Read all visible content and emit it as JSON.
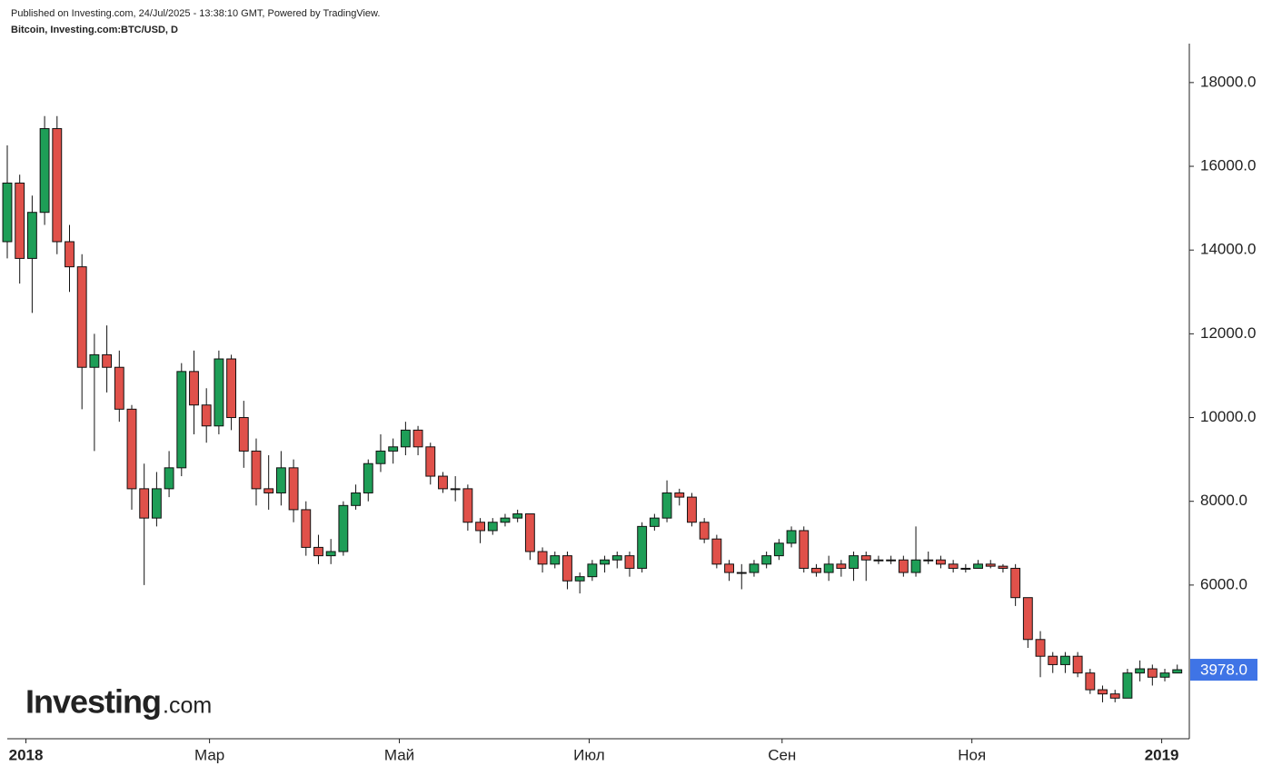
{
  "header": {
    "published": "Published on Investing.com, 24/Jul/2025 - 13:38:10 GMT, Powered by TradingView.",
    "symbol": "Bitcoin, Investing.com:BTC/USD, D"
  },
  "brand": {
    "name": "Investing",
    "suffix": ".com"
  },
  "chart_data": {
    "type": "candlestick",
    "x": [
      -6,
      -2,
      2,
      6,
      10,
      14,
      18,
      22,
      26,
      30,
      34,
      38,
      42,
      46,
      50,
      54,
      58,
      62,
      66,
      70,
      74,
      78,
      82,
      86,
      90,
      94,
      98,
      102,
      106,
      110,
      114,
      118,
      122,
      126,
      130,
      134,
      138,
      142,
      146,
      150,
      154,
      158,
      162,
      166,
      170,
      174,
      178,
      182,
      186,
      190,
      194,
      198,
      202,
      206,
      210,
      214,
      218,
      222,
      226,
      230,
      234,
      238,
      242,
      246,
      250,
      254,
      258,
      262,
      266,
      270,
      274,
      278,
      282,
      286,
      290,
      294,
      298,
      302,
      306,
      310,
      314,
      318,
      322,
      326,
      330,
      334,
      338,
      342,
      346,
      350,
      354,
      358,
      362,
      366,
      370
    ],
    "open": [
      14200,
      15600,
      13800,
      14900,
      16900,
      14200,
      13600,
      11200,
      11500,
      11200,
      10200,
      8300,
      7600,
      8300,
      8800,
      11100,
      10300,
      9800,
      11400,
      10000,
      9200,
      8300,
      8200,
      8800,
      7800,
      6900,
      6700,
      6800,
      7900,
      8200,
      8900,
      9200,
      9300,
      9700,
      9300,
      8600,
      8300,
      8300,
      7500,
      7300,
      7500,
      7600,
      7700,
      6800,
      6500,
      6700,
      6100,
      6200,
      6500,
      6600,
      6700,
      6400,
      7400,
      7600,
      8200,
      8100,
      7500,
      7100,
      6500,
      6300,
      6300,
      6500,
      6700,
      7000,
      7300,
      6400,
      6300,
      6500,
      6400,
      6700,
      6600,
      6600,
      6600,
      6300,
      6600,
      6600,
      6500,
      6400,
      6400,
      6500,
      6450,
      6400,
      5700,
      4700,
      4300,
      4100,
      4300,
      3900,
      3500,
      3400,
      3300,
      3900,
      4000,
      3800,
      3900
    ],
    "high": [
      16500,
      15800,
      15300,
      17200,
      17200,
      14600,
      13900,
      12000,
      12200,
      11600,
      10300,
      8900,
      8700,
      9200,
      11300,
      11600,
      10700,
      11600,
      11500,
      10400,
      9500,
      9100,
      9200,
      9000,
      8000,
      7200,
      7100,
      8000,
      8400,
      9000,
      9600,
      9500,
      9900,
      9800,
      9400,
      8700,
      8600,
      8400,
      7600,
      7600,
      7700,
      7800,
      7700,
      6900,
      6800,
      6800,
      6300,
      6600,
      6700,
      6800,
      6800,
      7500,
      7700,
      8500,
      8300,
      8200,
      7600,
      7200,
      6600,
      6500,
      6600,
      6800,
      7100,
      7400,
      7400,
      6500,
      6700,
      6600,
      6800,
      6800,
      6700,
      6700,
      6700,
      7400,
      6800,
      6700,
      6600,
      6500,
      6600,
      6600,
      6500,
      6500,
      5700,
      4900,
      4400,
      4400,
      4400,
      4000,
      3600,
      3500,
      4000,
      4200,
      4100,
      4000,
      4100
    ],
    "low": [
      13800,
      13200,
      12500,
      14600,
      13900,
      13000,
      10200,
      9200,
      10600,
      9900,
      7800,
      6000,
      7400,
      8100,
      8600,
      9600,
      9400,
      9600,
      9700,
      8800,
      7900,
      7800,
      7900,
      7500,
      6700,
      6500,
      6500,
      6700,
      7800,
      8000,
      8700,
      8900,
      9100,
      9100,
      8400,
      8200,
      8000,
      7300,
      7000,
      7200,
      7400,
      7500,
      6600,
      6300,
      6400,
      5900,
      5800,
      6100,
      6300,
      6400,
      6200,
      6300,
      7300,
      7500,
      7900,
      7400,
      7000,
      6400,
      6100,
      5900,
      6200,
      6400,
      6600,
      6900,
      6300,
      6200,
      6100,
      6200,
      6100,
      6100,
      6500,
      6500,
      6200,
      6200,
      6500,
      6400,
      6300,
      6300,
      6400,
      6400,
      6300,
      5500,
      4500,
      3800,
      3900,
      3900,
      3800,
      3400,
      3200,
      3200,
      3300,
      3700,
      3600,
      3700,
      3900
    ],
    "close": [
      15600,
      13800,
      14900,
      16900,
      14200,
      13600,
      11200,
      11500,
      11200,
      10200,
      8300,
      7600,
      8300,
      8800,
      11100,
      10300,
      9800,
      11400,
      10000,
      9200,
      8300,
      8200,
      8800,
      7800,
      6900,
      6700,
      6800,
      7900,
      8200,
      8900,
      9200,
      9300,
      9700,
      9300,
      8600,
      8300,
      8300,
      7500,
      7300,
      7500,
      7600,
      7700,
      6800,
      6500,
      6700,
      6100,
      6200,
      6500,
      6600,
      6700,
      6400,
      7400,
      7600,
      8200,
      8100,
      7500,
      7100,
      6500,
      6300,
      6300,
      6500,
      6700,
      7000,
      7300,
      6400,
      6300,
      6500,
      6400,
      6700,
      6600,
      6600,
      6600,
      6300,
      6600,
      6600,
      6500,
      6400,
      6400,
      6500,
      6450,
      6400,
      5700,
      4700,
      4300,
      4100,
      4300,
      3900,
      3500,
      3400,
      3300,
      3900,
      4000,
      3800,
      3900,
      3978
    ],
    "up_color": "#1e9e57",
    "down_color": "#e0514a",
    "outline_color": "#111111",
    "xlim": [
      -6,
      373
    ],
    "xticks": [
      {
        "value": 0,
        "label": "2018"
      },
      {
        "value": 59,
        "label": "Мар"
      },
      {
        "value": 120,
        "label": "Май"
      },
      {
        "value": 181,
        "label": "Июл"
      },
      {
        "value": 243,
        "label": "Сен"
      },
      {
        "value": 304,
        "label": "Ноя"
      },
      {
        "value": 365,
        "label": "2019"
      }
    ],
    "ylim": [
      2330,
      18930
    ],
    "yticks": [
      {
        "value": 6000,
        "label": "6000.0"
      },
      {
        "value": 8000,
        "label": "8000.0"
      },
      {
        "value": 10000,
        "label": "10000.0"
      },
      {
        "value": 12000,
        "label": "12000.0"
      },
      {
        "value": 14000,
        "label": "14000.0"
      },
      {
        "value": 16000,
        "label": "16000.0"
      },
      {
        "value": 18000,
        "label": "18000.0"
      }
    ],
    "last_price": {
      "value": 3978,
      "label": "3978.0"
    },
    "last_price_color": "#3f74e6"
  }
}
